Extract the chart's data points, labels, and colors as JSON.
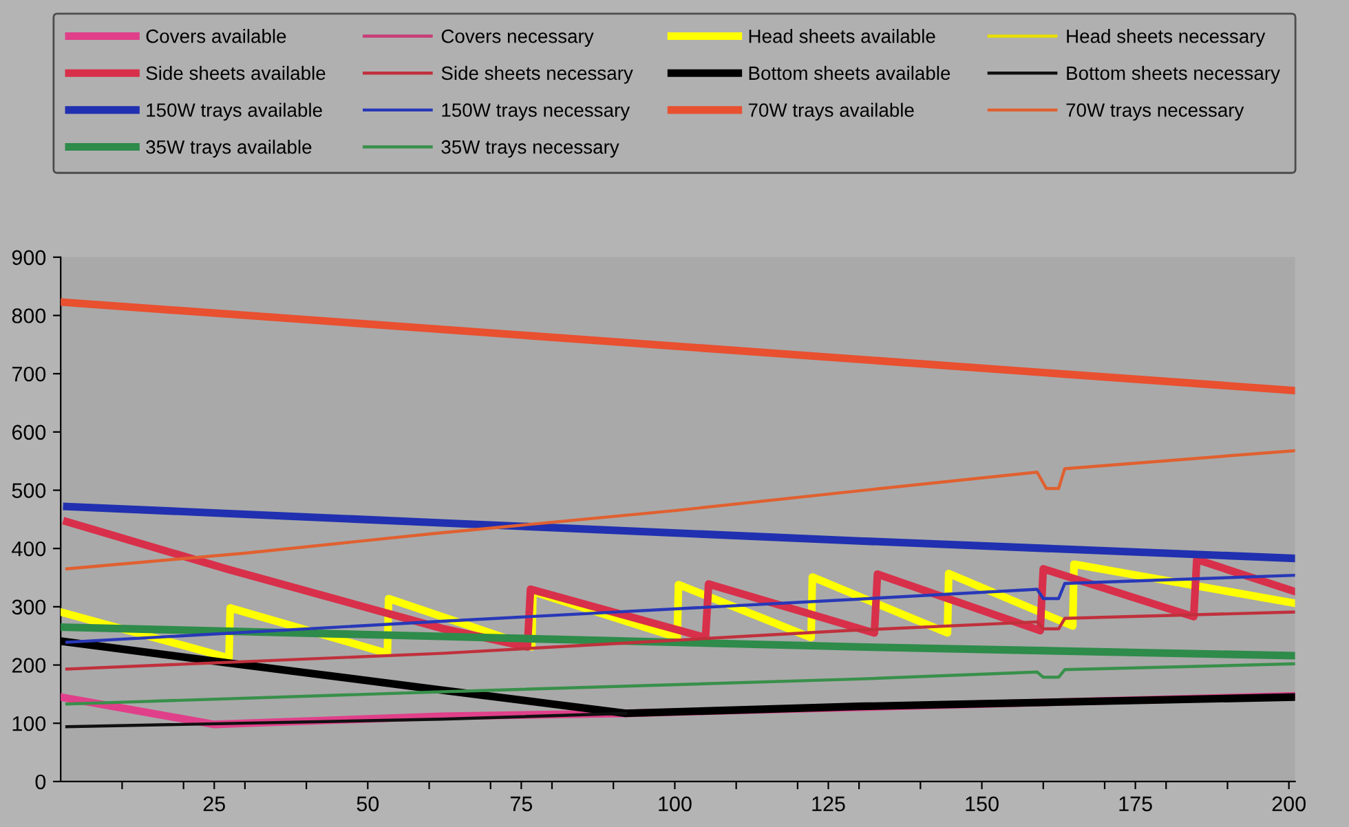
{
  "chart_data": {
    "type": "line",
    "legend": "top",
    "grid": false,
    "xlim": [
      0,
      201
    ],
    "ylim": [
      0,
      900
    ],
    "yticks": [
      0,
      100,
      200,
      300,
      400,
      500,
      600,
      700,
      800,
      900
    ],
    "xticks": [
      {
        "value": 10,
        "label": null
      },
      {
        "value": 20,
        "label": null
      },
      25,
      {
        "value": 30,
        "label": null
      },
      {
        "value": 40,
        "label": null
      },
      50,
      {
        "value": 60,
        "label": null
      },
      {
        "value": 70,
        "label": null
      },
      75,
      {
        "value": 80,
        "label": null
      },
      {
        "value": 90,
        "label": null
      },
      100,
      {
        "value": 110,
        "label": null
      },
      {
        "value": 120,
        "label": null
      },
      125,
      {
        "value": 130,
        "label": null
      },
      {
        "value": 140,
        "label": null
      },
      150,
      {
        "value": 160,
        "label": null
      },
      {
        "value": 170,
        "label": null
      },
      175,
      {
        "value": 180,
        "label": null
      },
      {
        "value": 190,
        "label": null
      },
      200
    ],
    "series": [
      {
        "name": "Covers available",
        "color": "#e0408a",
        "x": [
          0,
          25,
          62,
          92,
          201
        ],
        "values": [
          145,
          98,
          112,
          117,
          147
        ]
      },
      {
        "name": "Covers necessary",
        "color": "#c83c78",
        "values": [
          null
        ]
      },
      {
        "name": "Head sheets available",
        "color": "#ffff00",
        "x": [
          0,
          27.4,
          27.6,
          53.2,
          53.4,
          76.7,
          76.9,
          100.4,
          100.6,
          122.2,
          122.4,
          144.4,
          144.6,
          164.8,
          165,
          201
        ],
        "values": [
          291,
          212,
          298,
          220,
          314,
          231,
          326,
          247,
          338,
          247,
          351,
          255,
          357,
          267,
          373,
          306
        ]
      },
      {
        "name": "Head sheets necessary",
        "color": "#e8e000",
        "values": [
          null
        ]
      },
      {
        "name": "Side sheets available",
        "color": "#d8304a",
        "x": [
          1,
          27,
          62,
          76,
          76.5,
          105,
          105.5,
          132.5,
          133,
          159.5,
          160,
          184.5,
          185,
          201
        ],
        "values": [
          446,
          365,
          263,
          231,
          330,
          247,
          339,
          255,
          356,
          259,
          365,
          283,
          381,
          326
        ]
      },
      {
        "name": "Side sheets necessary",
        "color": "#c0303c",
        "x": [
          1,
          62,
          128,
          159,
          160,
          162.5,
          163.5,
          201
        ],
        "values": [
          193,
          220,
          259,
          274,
          262,
          262,
          280,
          291
        ]
      },
      {
        "name": "Bottom sheets available",
        "color": "#000000",
        "x": [
          0,
          27,
          62,
          92,
          130,
          201
        ],
        "values": [
          241,
          204,
          157,
          117,
          129,
          145
        ]
      },
      {
        "name": "Bottom sheets necessary",
        "color": "#101010",
        "x": [
          1,
          62,
          92
        ],
        "values": [
          94,
          107,
          117
        ]
      },
      {
        "name": "150W trays available",
        "color": "#2030b0",
        "x": [
          1,
          62,
          130,
          201
        ],
        "values": [
          472,
          444,
          413,
          383
        ]
      },
      {
        "name": "150W trays necessary",
        "color": "#2838b8",
        "x": [
          1,
          62,
          128,
          159,
          160,
          162.5,
          163.5,
          201
        ],
        "values": [
          239,
          275,
          312,
          330,
          314,
          314,
          340,
          354
        ]
      },
      {
        "name": "70W trays available",
        "color": "#e85030",
        "x": [
          0,
          201
        ],
        "values": [
          823,
          671
        ]
      },
      {
        "name": "70W trays necessary",
        "color": "#e06030",
        "x": [
          1,
          30,
          61,
          100,
          130,
          159,
          160.5,
          162.5,
          163.5,
          201
        ],
        "values": [
          365,
          392,
          426,
          465,
          499,
          531,
          503,
          503,
          537,
          568
        ]
      },
      {
        "name": "35W trays available",
        "color": "#2e8b4a",
        "x": [
          0,
          62,
          130,
          201
        ],
        "values": [
          265,
          249,
          231,
          216
        ]
      },
      {
        "name": "35W trays necessary",
        "color": "#38904a",
        "x": [
          1,
          62,
          130,
          159,
          160,
          162.5,
          163.5,
          201
        ],
        "values": [
          133,
          154,
          176,
          188,
          179,
          179,
          192,
          202
        ]
      }
    ]
  }
}
